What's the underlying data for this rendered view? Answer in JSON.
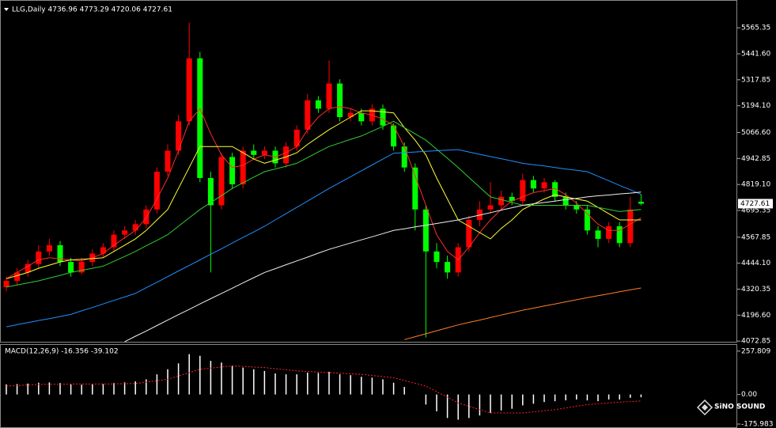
{
  "chart_data": [
    {
      "type": "candlestick",
      "title": "LLG,Daily  4736.96 4773.29 4720.06 4727.61",
      "open": [
        4330,
        4360,
        4400,
        4440,
        4500,
        4530,
        4450,
        4400,
        4450,
        4490,
        4520,
        4580,
        4600,
        4630,
        4700,
        4880,
        4980,
        5120,
        5420,
        4850,
        4720,
        4950,
        4820,
        4980,
        4960,
        4980,
        4920,
        5000,
        5080,
        5220,
        5180,
        5300,
        5140,
        5160,
        5120,
        5180,
        5100,
        5000,
        4900,
        4700,
        4500,
        4450,
        4400,
        4520,
        4650,
        4700,
        4720,
        4760,
        4740,
        4840,
        4800,
        4830,
        4760,
        4720,
        4700,
        4600,
        4560,
        4620,
        4540,
        4736.96
      ],
      "high": [
        4380,
        4420,
        4460,
        4530,
        4560,
        4550,
        4470,
        4470,
        4510,
        4540,
        4600,
        4620,
        4650,
        4720,
        4900,
        5010,
        5150,
        5590,
        5450,
        4880,
        4970,
        4970,
        5000,
        5010,
        5000,
        5000,
        5020,
        5100,
        5250,
        5240,
        5410,
        5320,
        5180,
        5180,
        5200,
        5200,
        5110,
        5020,
        4920,
        4720,
        4540,
        4480,
        4540,
        4670,
        4740,
        4830,
        4790,
        4780,
        4870,
        4860,
        4850,
        4840,
        4780,
        4740,
        4720,
        4620,
        4640,
        4640,
        4760,
        4773.29
      ],
      "low": [
        4310,
        4340,
        4380,
        4420,
        4480,
        4430,
        4380,
        4390,
        4430,
        4470,
        4500,
        4560,
        4580,
        4610,
        4680,
        4860,
        4960,
        5100,
        4830,
        4400,
        4700,
        4800,
        4800,
        4940,
        4940,
        4900,
        4900,
        4980,
        5060,
        5160,
        5160,
        5120,
        5120,
        5100,
        5100,
        5080,
        4980,
        4880,
        4600,
        4090,
        4420,
        4370,
        4380,
        4500,
        4620,
        4680,
        4700,
        4720,
        4720,
        4780,
        4780,
        4740,
        4700,
        4680,
        4580,
        4520,
        4540,
        4520,
        4520,
        4720.06
      ],
      "close": [
        4360,
        4400,
        4440,
        4500,
        4530,
        4450,
        4400,
        4450,
        4490,
        4520,
        4580,
        4600,
        4630,
        4700,
        4880,
        4980,
        5120,
        5420,
        4850,
        4720,
        4950,
        4820,
        4980,
        4960,
        4980,
        4920,
        5000,
        5080,
        5220,
        5180,
        5300,
        5140,
        5160,
        5120,
        5180,
        5100,
        5000,
        4900,
        4700,
        4500,
        4450,
        4400,
        4520,
        4650,
        4700,
        4720,
        4760,
        4740,
        4840,
        4800,
        4830,
        4760,
        4720,
        4700,
        4600,
        4560,
        4620,
        4540,
        4700,
        4727.61
      ],
      "up_color": "#ff0000",
      "down_color": "#00ff00",
      "series": [
        {
          "color": "#ff2a2a",
          "values": [
            4370,
            4400,
            4430,
            4460,
            4470,
            4465,
            4460,
            4455,
            4470,
            4490,
            4530,
            4565,
            4600,
            4660,
            4750,
            4850,
            4980,
            5120,
            5180,
            5060,
            4960,
            4900,
            4910,
            4940,
            4960,
            4950,
            4970,
            5000,
            5080,
            5140,
            5180,
            5190,
            5180,
            5160,
            5150,
            5130,
            5100,
            5000,
            4860,
            4720,
            4580,
            4500,
            4460,
            4520,
            4590,
            4650,
            4700,
            4740,
            4760,
            4780,
            4790,
            4800,
            4770,
            4730,
            4680,
            4630,
            4600,
            4600,
            4630,
            4660
          ]
        },
        {
          "color": "#ffff33",
          "values": [
            4370,
            4385,
            4400,
            4420,
            4435,
            4450,
            4460,
            4463,
            4466,
            4470,
            4500,
            4530,
            4560,
            4600,
            4650,
            4700,
            4800,
            4900,
            5000,
            5000,
            5000,
            5000,
            4970,
            4940,
            4920,
            4935,
            4950,
            4970,
            5010,
            5045,
            5080,
            5110,
            5140,
            5170,
            5170,
            5165,
            5160,
            5090,
            5030,
            4960,
            4850,
            4750,
            4650,
            4620,
            4590,
            4560,
            4610,
            4650,
            4700,
            4725,
            4750,
            4770,
            4760,
            4750,
            4740,
            4710,
            4680,
            4650,
            4650,
            4650
          ]
        },
        {
          "color": "#33cc33",
          "values": [
            4330,
            4340,
            4350,
            4360,
            4373,
            4386,
            4400,
            4410,
            4420,
            4430,
            4453,
            4476,
            4500,
            4527,
            4553,
            4580,
            4620,
            4660,
            4700,
            4733,
            4766,
            4800,
            4827,
            4854,
            4880,
            4893,
            4906,
            4920,
            4947,
            4974,
            5000,
            5017,
            5034,
            5050,
            5073,
            5096,
            5120,
            5090,
            5060,
            5030,
            4987,
            4944,
            4900,
            4853,
            4806,
            4760,
            4747,
            4734,
            4720,
            4720,
            4720,
            4720,
            4720,
            4720,
            4720,
            4710,
            4700,
            4690,
            4695,
            4700
          ]
        },
        {
          "color": "#1e90ff",
          "values": [
            4141,
            4151,
            4161,
            4171,
            4180,
            4190,
            4200,
            4217,
            4233,
            4250,
            4267,
            4283,
            4300,
            4327,
            4353,
            4380,
            4407,
            4433,
            4460,
            4487,
            4513,
            4540,
            4567,
            4593,
            4620,
            4650,
            4680,
            4710,
            4740,
            4770,
            4800,
            4828,
            4856,
            4884,
            4912,
            4940,
            4968,
            4971,
            4974,
            4977,
            4980,
            4983,
            4985,
            4974,
            4963,
            4952,
            4942,
            4931,
            4920,
            4913,
            4907,
            4900,
            4893,
            4887,
            4880,
            4858,
            4837,
            4815,
            4794,
            4772
          ]
        },
        {
          "color": "#f0f0f0",
          "values": [
            null,
            null,
            null,
            null,
            null,
            null,
            null,
            null,
            null,
            null,
            null,
            4070,
            4096,
            4121,
            4147,
            4173,
            4199,
            4224,
            4250,
            4275,
            4300,
            4325,
            4350,
            4375,
            4400,
            4418,
            4437,
            4455,
            4473,
            4492,
            4510,
            4525,
            4540,
            4555,
            4570,
            4585,
            4600,
            4608,
            4617,
            4625,
            4633,
            4642,
            4650,
            4662,
            4673,
            4685,
            4697,
            4708,
            4720,
            4727,
            4733,
            4740,
            4747,
            4753,
            4760,
            4765,
            4769,
            4774,
            4778,
            4783
          ]
        },
        {
          "color": "#ff7f27",
          "values": [
            null,
            null,
            null,
            null,
            null,
            null,
            null,
            null,
            null,
            null,
            null,
            null,
            null,
            null,
            null,
            null,
            null,
            null,
            null,
            null,
            null,
            null,
            null,
            null,
            null,
            null,
            null,
            null,
            null,
            null,
            null,
            null,
            null,
            null,
            null,
            null,
            null,
            4080,
            4094,
            4108,
            4122,
            4136,
            4150,
            4162,
            4173,
            4185,
            4197,
            4208,
            4220,
            4230,
            4240,
            4250,
            4260,
            4270,
            4280,
            4289,
            4298,
            4308,
            4317,
            4326
          ]
        }
      ],
      "ylim": [
        4066,
        5679
      ],
      "yticks": [
        5565.35,
        {
          "value": 5441.6,
          "label": "5441.60"
        },
        5317.85,
        {
          "value": 5194.1,
          "label": "5194.10"
        },
        {
          "value": 5066.6,
          "label": "5066.60"
        },
        4942.85,
        {
          "value": 4819.1,
          "label": "4819.10"
        },
        4695.35,
        4567.85,
        {
          "value": 4444.1,
          "label": "4444.10"
        },
        4320.35,
        {
          "value": 4196.6,
          "label": "4196.60"
        },
        4072.85
      ]
    },
    {
      "type": "macd",
      "title": "MACD(12,26,9) -16.356 -39.102",
      "color": "#ffffff",
      "values": [
        60,
        62,
        65,
        70,
        72,
        68,
        60,
        58,
        60,
        62,
        68,
        72,
        78,
        90,
        120,
        150,
        185,
        240,
        230,
        200,
        190,
        170,
        160,
        150,
        140,
        125,
        120,
        120,
        130,
        128,
        135,
        120,
        115,
        105,
        100,
        90,
        70,
        45,
        0,
        -60,
        -100,
        -140,
        -150,
        -140,
        -125,
        -110,
        -95,
        -85,
        -65,
        -55,
        -45,
        -40,
        -35,
        -30,
        -35,
        -40,
        -30,
        -30,
        -20,
        -16.356
      ],
      "signal": {
        "color": "#ff2020",
        "values": [
          50,
          53,
          57,
          60,
          61,
          61,
          62,
          62,
          62,
          62,
          63,
          64,
          65,
          73,
          82,
          90,
          110,
          130,
          150,
          157,
          163,
          170,
          167,
          163,
          160,
          153,
          147,
          140,
          137,
          133,
          130,
          127,
          123,
          120,
          113,
          107,
          100,
          83,
          67,
          50,
          17,
          -17,
          -50,
          -70,
          -90,
          -110,
          -110,
          -110,
          -110,
          -103,
          -97,
          -90,
          -80,
          -70,
          -60,
          -55,
          -50,
          -45,
          -42,
          -39.102
        ]
      },
      "ylim": [
        -190,
        290
      ],
      "yticks": [
        257.809,
        {
          "value": 0,
          "label": "0.00"
        },
        -175.983
      ]
    }
  ],
  "watermark": "SiNO SOUND"
}
